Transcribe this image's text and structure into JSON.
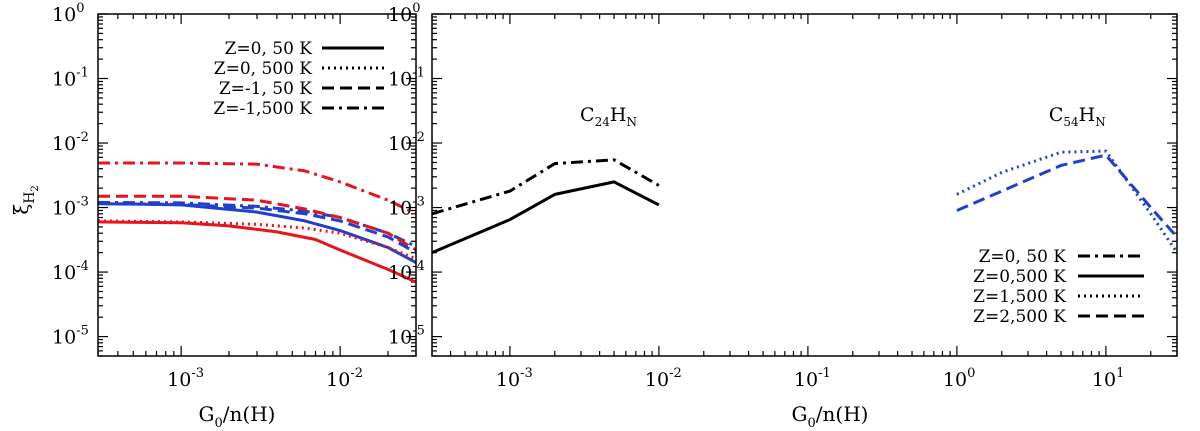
{
  "chart_data": [
    {
      "type": "line",
      "panel": "left",
      "xscale": "log",
      "yscale": "log",
      "xlim": [
        0.0003,
        0.03
      ],
      "ylim": [
        5e-06,
        1
      ],
      "xlabel": "G0/n(H)",
      "ylabel": "ξH2",
      "xticks": [
        {
          "value": 0.001,
          "base": "10",
          "exp": "-3"
        },
        {
          "value": 0.01,
          "base": "10",
          "exp": "-2"
        }
      ],
      "yticks": [
        {
          "value": 1,
          "base": "10",
          "exp": "0"
        },
        {
          "value": 0.1,
          "base": "10",
          "exp": "-1"
        },
        {
          "value": 0.01,
          "base": "10",
          "exp": "-2"
        },
        {
          "value": 0.001,
          "base": "10",
          "exp": "-3"
        },
        {
          "value": 0.0001,
          "base": "10",
          "exp": "-4"
        },
        {
          "value": 1e-05,
          "base": "10",
          "exp": "-5"
        }
      ],
      "legend": [
        {
          "label": "Z=0,  50 K",
          "dash": "solid"
        },
        {
          "label": "Z=0, 500 K",
          "dash": "dotted"
        },
        {
          "label": "Z=-1,  50 K",
          "dash": "dashed"
        },
        {
          "label": "Z=-1,500 K",
          "dash": "dashdot"
        }
      ],
      "series": [
        {
          "name": "red Z=-1,500 K",
          "color": "#e8141b",
          "dash": "dashdot",
          "x": [
            0.0003,
            0.001,
            0.003,
            0.006,
            0.01,
            0.02,
            0.03
          ],
          "y": [
            0.0049,
            0.0049,
            0.0047,
            0.0037,
            0.0025,
            0.0013,
            0.0008
          ]
        },
        {
          "name": "blue Z=-1,500 K",
          "color": "#1f3fcf",
          "dash": "dashdot",
          "x": [
            0.0003,
            0.001,
            0.003,
            0.006,
            0.01,
            0.02,
            0.03
          ],
          "y": [
            0.0012,
            0.00118,
            0.00104,
            0.00088,
            0.0007,
            0.0004,
            0.00025
          ]
        },
        {
          "name": "red Z=-1, 50 K",
          "color": "#e8141b",
          "dash": "dashed",
          "x": [
            0.0003,
            0.001,
            0.003,
            0.006,
            0.01,
            0.02,
            0.03
          ],
          "y": [
            0.0015,
            0.0015,
            0.0013,
            0.00095,
            0.0007,
            0.0004,
            0.00022
          ]
        },
        {
          "name": "blue Z=-1, 50 K",
          "color": "#1f3fcf",
          "dash": "dashed",
          "x": [
            0.0003,
            0.001,
            0.003,
            0.006,
            0.01,
            0.02,
            0.03
          ],
          "y": [
            0.00115,
            0.00112,
            0.00098,
            0.0008,
            0.00062,
            0.00035,
            0.0002
          ]
        },
        {
          "name": "blue Z=0, 50 K",
          "color": "#1f3fcf",
          "dash": "solid",
          "x": [
            0.0003,
            0.001,
            0.003,
            0.006,
            0.01,
            0.02,
            0.03
          ],
          "y": [
            0.00115,
            0.0011,
            0.00085,
            0.00062,
            0.00044,
            0.00024,
            0.00014
          ]
        },
        {
          "name": "red Z=0, 500 K",
          "color": "#e8141b",
          "dash": "dotted",
          "x": [
            0.0003,
            0.001,
            0.003,
            0.006,
            0.01,
            0.02,
            0.03
          ],
          "y": [
            0.00062,
            0.0006,
            0.00055,
            0.00048,
            0.0004,
            0.00024,
            0.00016
          ]
        },
        {
          "name": "red Z=0, 50 K",
          "color": "#e8141b",
          "dash": "solid",
          "x": [
            0.0003,
            0.001,
            0.002,
            0.004,
            0.007,
            0.01,
            0.02,
            0.03
          ],
          "y": [
            0.0006,
            0.00058,
            0.00052,
            0.00042,
            0.00032,
            0.00022,
            0.00011,
            7e-05
          ]
        }
      ]
    },
    {
      "type": "line",
      "panel": "right",
      "xscale": "log",
      "yscale": "log",
      "xlim": [
        0.0003,
        30
      ],
      "ylim": [
        5e-06,
        1
      ],
      "xlabel": "G0/n(H)",
      "xticks": [
        {
          "value": 0.001,
          "base": "10",
          "exp": "-3"
        },
        {
          "value": 0.01,
          "base": "10",
          "exp": "-2"
        },
        {
          "value": 0.1,
          "base": "10",
          "exp": "-1"
        },
        {
          "value": 1,
          "base": "10",
          "exp": "0"
        },
        {
          "value": 10,
          "base": "10",
          "exp": "1"
        }
      ],
      "yticks": [
        {
          "value": 1,
          "base": "10",
          "exp": "0"
        },
        {
          "value": 0.1,
          "base": "10",
          "exp": "-1"
        },
        {
          "value": 0.01,
          "base": "10",
          "exp": "-2"
        },
        {
          "value": 0.001,
          "base": "10",
          "exp": "-3"
        },
        {
          "value": 0.0001,
          "base": "10",
          "exp": "-4"
        },
        {
          "value": 1e-05,
          "base": "10",
          "exp": "-5"
        }
      ],
      "annotations": [
        {
          "base": "C",
          "sub1": "24",
          "mid": "H",
          "sub2": "N",
          "x": 0.005,
          "y": 0.028
        },
        {
          "base": "C",
          "sub1": "54",
          "mid": "H",
          "sub2": "N",
          "x": 7,
          "y": 0.028
        }
      ],
      "legend": [
        {
          "label": "Z=0, 50 K",
          "dash": "dashdot"
        },
        {
          "label": "Z=0,500 K",
          "dash": "solid"
        },
        {
          "label": "Z=1,500 K",
          "dash": "dotted"
        },
        {
          "label": "Z=2,500 K",
          "dash": "dashed"
        }
      ],
      "series": [
        {
          "name": "C24HN Z=0, 50 K",
          "color": "#000000",
          "dash": "dashdot",
          "x": [
            0.0003,
            0.001,
            0.002,
            0.005,
            0.01
          ],
          "y": [
            0.0008,
            0.0018,
            0.0048,
            0.0055,
            0.0022
          ]
        },
        {
          "name": "C24HN Z=0,500 K",
          "color": "#000000",
          "dash": "solid",
          "x": [
            0.0003,
            0.001,
            0.002,
            0.005,
            0.01
          ],
          "y": [
            0.0002,
            0.00065,
            0.0016,
            0.0025,
            0.0011
          ]
        },
        {
          "name": "C54HN Z=1,500 K",
          "color": "#1f3fcf",
          "dash": "dotted",
          "x": [
            1,
            2,
            5,
            10,
            20,
            30
          ],
          "y": [
            0.0016,
            0.0035,
            0.0072,
            0.0075,
            0.0008,
            0.0002
          ]
        },
        {
          "name": "C54HN Z=2,500 K",
          "color": "#1f3fcf",
          "dash": "dashed",
          "x": [
            1,
            2,
            5,
            10,
            20,
            30
          ],
          "y": [
            0.0009,
            0.0018,
            0.0045,
            0.0065,
            0.001,
            0.00035
          ]
        }
      ]
    }
  ]
}
